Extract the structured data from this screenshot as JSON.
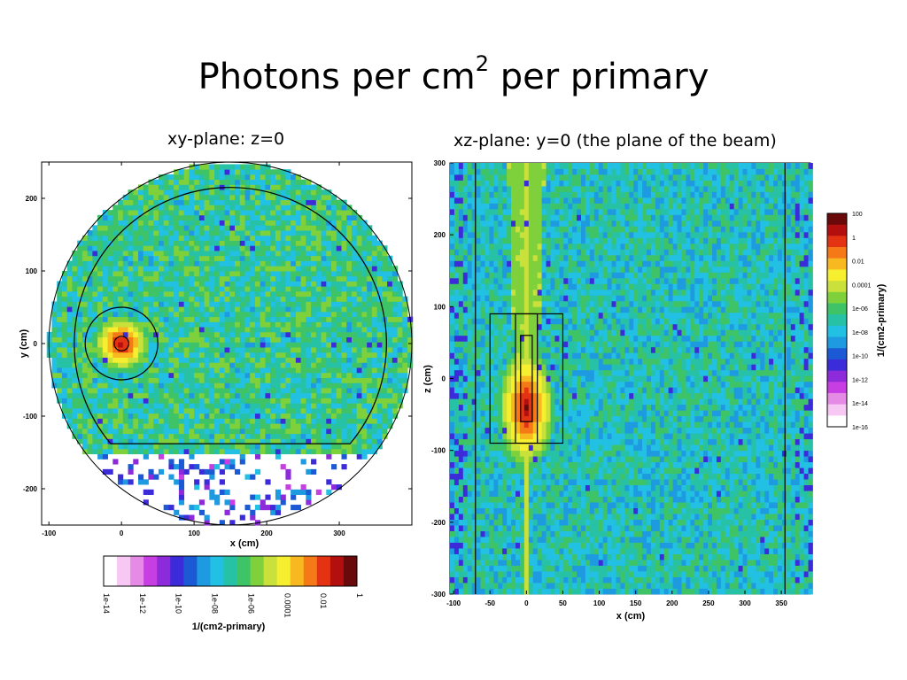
{
  "slide": {
    "title_main": "Photons per cm",
    "title_sup": "2",
    "title_tail": " per primary"
  },
  "colors": {
    "scale": [
      "#ffffff",
      "#f7c8f3",
      "#e58be6",
      "#c73ee2",
      "#8d2ad9",
      "#3b2bd9",
      "#1b5ad4",
      "#1e9be0",
      "#22c0e3",
      "#27c2a6",
      "#3ec466",
      "#7fd13c",
      "#c9e13a",
      "#f6ef2f",
      "#f8b81f",
      "#f57a17",
      "#e43313",
      "#b30f0f",
      "#6a0909"
    ]
  },
  "chart_data": [
    {
      "type": "heatmap",
      "title": "xy-plane: z=0",
      "xlabel": "x (cm)",
      "ylabel": "y (cm)",
      "xlim": [
        -110,
        400
      ],
      "ylim": [
        -250,
        250
      ],
      "x_ticks": [
        -100,
        0,
        100,
        200,
        300
      ],
      "y_ticks": [
        -200,
        -100,
        0,
        100,
        200
      ],
      "grid": false,
      "field": {
        "circle_center": [
          150,
          0
        ],
        "circle_radius": 250,
        "background_level": "1e-06",
        "hot_spot": {
          "x": 0,
          "y": 0,
          "peak": "1"
        },
        "empty_region": "y < -150"
      },
      "overlays": [
        {
          "shape": "circle",
          "center": [
            0,
            0
          ],
          "radius": 50
        },
        {
          "shape": "circle",
          "center": [
            0,
            0
          ],
          "radius": 10
        },
        {
          "shape": "truncated-circle",
          "center": [
            150,
            0
          ],
          "radius": 215,
          "flat_at_y": -138
        }
      ]
    },
    {
      "type": "heatmap",
      "title": "xz-plane: y=0 (the plane of the beam)",
      "xlabel": "x (cm)",
      "ylabel": "z (cm)",
      "xlim": [
        -105,
        390
      ],
      "ylim": [
        -300,
        300
      ],
      "x_ticks": [
        -100,
        -50,
        0,
        50,
        100,
        150,
        200,
        250,
        300,
        350
      ],
      "y_ticks": [
        -300,
        -200,
        -100,
        0,
        100,
        200,
        300
      ],
      "grid": false,
      "field": {
        "background_level": "1e-08",
        "beam_column": {
          "x": 0,
          "level": "0.0001"
        },
        "hot_spot": {
          "x": 0,
          "z": -40,
          "peak": "1"
        }
      },
      "overlays": [
        {
          "shape": "rect",
          "x": [
            -50,
            50
          ],
          "z": [
            -90,
            90
          ]
        },
        {
          "shape": "rect",
          "x": [
            -15,
            15
          ],
          "z": [
            -90,
            90
          ]
        },
        {
          "shape": "rect",
          "x": [
            -8,
            8
          ],
          "z": [
            -60,
            60
          ]
        },
        {
          "shape": "vline",
          "x": -70
        },
        {
          "shape": "vline",
          "x": 355
        }
      ]
    }
  ],
  "colorbars": {
    "horizontal": {
      "label": "1/(cm2-primary)",
      "ticks": [
        "1e-14",
        "1e-12",
        "1e-10",
        "1e-08",
        "1e-06",
        "0.0001",
        "0.01",
        "1"
      ]
    },
    "vertical": {
      "label": "1/(cm2-primary)",
      "ticks": [
        "100",
        "1",
        "0.01",
        "0.0001",
        "1e-06",
        "1e-08",
        "1e-10",
        "1e-12",
        "1e-14",
        "1e-16"
      ]
    }
  }
}
